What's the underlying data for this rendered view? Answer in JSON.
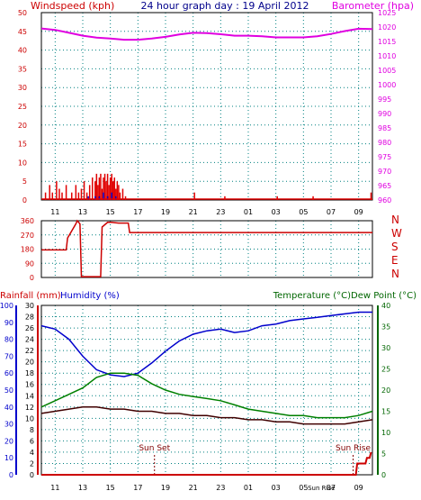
{
  "header": {
    "left_title": "Windspeed (kph)",
    "center_title": "24 hour graph day : 19 April 2012",
    "right_title": "Barometer (hpa)"
  },
  "colors": {
    "wind": "#e00000",
    "gust": "#0000cc",
    "barometer": "#e000e0",
    "direction": "#cc0000",
    "humidity": "#0000cc",
    "temperature": "#008000",
    "dewpoint": "#400000",
    "rain": "#cc0000",
    "grid": "#008080",
    "frame": "#000000",
    "left_axis_label": "#cc0000",
    "humidity_axis_label": "#0000cc",
    "temp_axis_label": "#006600"
  },
  "x_ticks": [
    "11",
    "13",
    "15",
    "17",
    "19",
    "21",
    "23",
    "01",
    "03",
    "05",
    "07",
    "09"
  ],
  "x_ticks_bottom": [
    "11",
    "13",
    "15",
    "17",
    "19",
    "21",
    "23",
    "01",
    "03",
    "05",
    "Sun Rise",
    "07",
    "09"
  ],
  "chart_data": [
    {
      "type": "line",
      "name": "wind-barometer",
      "y_left_ticks": [
        "0",
        "5",
        "10",
        "15",
        "20",
        "25",
        "30",
        "35",
        "40",
        "45",
        "50"
      ],
      "y_right_ticks": [
        "960",
        "965",
        "970",
        "975",
        "980",
        "985",
        "990",
        "995",
        "1000",
        "1005",
        "1010",
        "1015",
        "1020",
        "1025"
      ],
      "ylim_left": [
        0,
        50
      ],
      "ylim_right": [
        960,
        1025
      ],
      "barometer": {
        "x": [
          10,
          11,
          12,
          13,
          14,
          15,
          16,
          17,
          18,
          19,
          20,
          21,
          22,
          23,
          24,
          25,
          26,
          27,
          28,
          29,
          30,
          31,
          32,
          33,
          34
        ],
        "y": [
          1019.5,
          1019.0,
          1018.0,
          1017.0,
          1016.3,
          1016.0,
          1015.6,
          1015.6,
          1016.0,
          1016.6,
          1017.4,
          1018.0,
          1017.9,
          1017.5,
          1017.0,
          1017.0,
          1016.8,
          1016.4,
          1016.4,
          1016.4,
          1016.8,
          1017.6,
          1018.6,
          1019.4,
          1019.3
        ]
      },
      "wind_bars": [
        {
          "x": 10.3,
          "y": 2
        },
        {
          "x": 10.6,
          "y": 4
        },
        {
          "x": 10.8,
          "y": 2
        },
        {
          "x": 11.1,
          "y": 5
        },
        {
          "x": 11.3,
          "y": 3
        },
        {
          "x": 11.5,
          "y": 2
        },
        {
          "x": 11.8,
          "y": 4
        },
        {
          "x": 12.2,
          "y": 2
        },
        {
          "x": 12.5,
          "y": 4
        },
        {
          "x": 12.7,
          "y": 2
        },
        {
          "x": 12.9,
          "y": 3
        },
        {
          "x": 13.1,
          "y": 5
        },
        {
          "x": 13.3,
          "y": 2
        },
        {
          "x": 13.5,
          "y": 4
        },
        {
          "x": 13.7,
          "y": 6
        },
        {
          "x": 13.9,
          "y": 5
        },
        {
          "x": 14.0,
          "y": 7
        },
        {
          "x": 14.1,
          "y": 4
        },
        {
          "x": 14.2,
          "y": 6
        },
        {
          "x": 14.3,
          "y": 7
        },
        {
          "x": 14.4,
          "y": 3
        },
        {
          "x": 14.5,
          "y": 6
        },
        {
          "x": 14.6,
          "y": 7
        },
        {
          "x": 14.7,
          "y": 5
        },
        {
          "x": 14.8,
          "y": 7
        },
        {
          "x": 14.9,
          "y": 4
        },
        {
          "x": 15.0,
          "y": 6
        },
        {
          "x": 15.1,
          "y": 7
        },
        {
          "x": 15.2,
          "y": 5
        },
        {
          "x": 15.3,
          "y": 6
        },
        {
          "x": 15.4,
          "y": 3
        },
        {
          "x": 15.5,
          "y": 5
        },
        {
          "x": 15.6,
          "y": 4
        },
        {
          "x": 15.7,
          "y": 2
        },
        {
          "x": 15.9,
          "y": 3
        },
        {
          "x": 16.1,
          "y": 1
        },
        {
          "x": 21.1,
          "y": 2
        },
        {
          "x": 23.3,
          "y": 1
        },
        {
          "x": 27.1,
          "y": 1
        },
        {
          "x": 29.7,
          "y": 1
        },
        {
          "x": 33.9,
          "y": 2
        }
      ],
      "gust_bars": [
        {
          "x": 13.4,
          "y": 1
        },
        {
          "x": 13.9,
          "y": 1
        },
        {
          "x": 14.2,
          "y": 1
        },
        {
          "x": 14.5,
          "y": 2
        },
        {
          "x": 14.8,
          "y": 1
        },
        {
          "x": 15.1,
          "y": 2
        },
        {
          "x": 15.4,
          "y": 1
        }
      ]
    },
    {
      "type": "line",
      "name": "wind-direction",
      "y_ticks": [
        "0",
        "90",
        "180",
        "270",
        "360"
      ],
      "compass": [
        "N",
        "W",
        "S",
        "E",
        "N"
      ],
      "ylim": [
        0,
        360
      ],
      "direction": {
        "x": [
          10,
          11.8,
          11.9,
          12.5,
          12.6,
          12.8,
          12.9,
          14.3,
          14.4,
          14.8,
          15.1,
          15.6,
          16.3,
          16.4,
          34
        ],
        "y": [
          175,
          175,
          250,
          340,
          360,
          340,
          5,
          5,
          320,
          350,
          350,
          345,
          345,
          285,
          285
        ]
      }
    },
    {
      "type": "line",
      "name": "temp-humidity-rain",
      "left_label_rain": "Rainfall (mm)",
      "left_label_hum": "Humidity (%)",
      "right_label": "Temperature (°C)Dew Point (°C)",
      "y_rain_ticks": [
        "0",
        "2",
        "4",
        "6",
        "8",
        "10",
        "12",
        "14",
        "16",
        "18",
        "20",
        "22",
        "24",
        "26",
        "28",
        "30"
      ],
      "y_hum_ticks": [
        "0",
        "10",
        "20",
        "30",
        "40",
        "50",
        "60",
        "70",
        "80",
        "90",
        "100"
      ],
      "y_temp_ticks": [
        "0",
        "5",
        "10",
        "15",
        "20",
        "25",
        "30",
        "35",
        "40"
      ],
      "ylim_hum": [
        0,
        100
      ],
      "ylim_temp": [
        0,
        40
      ],
      "annotations": {
        "sunset": "Sun Set",
        "sunrise": "Sun Rise"
      },
      "humidity": {
        "x": [
          10,
          11,
          12,
          13,
          14,
          15,
          16,
          17,
          18,
          19,
          20,
          21,
          22,
          23,
          24,
          25,
          26,
          27,
          28,
          29,
          30,
          31,
          32,
          33,
          34
        ],
        "y": [
          88,
          86,
          80,
          70,
          62,
          59,
          58,
          60,
          66,
          73,
          79,
          83,
          85,
          86,
          84,
          85,
          88,
          89,
          91,
          92,
          93,
          94,
          95,
          96,
          96
        ]
      },
      "temperature": {
        "x": [
          10,
          11,
          12,
          13,
          14,
          15,
          16,
          17,
          18,
          19,
          20,
          21,
          22,
          23,
          24,
          25,
          26,
          27,
          28,
          29,
          30,
          31,
          32,
          33,
          34
        ],
        "y": [
          16,
          17.5,
          19,
          20.5,
          23,
          24,
          24,
          23.5,
          21.5,
          20,
          19,
          18.5,
          18,
          17.5,
          16.5,
          15.5,
          15,
          14.5,
          14,
          14,
          13.5,
          13.5,
          13.5,
          14,
          15
        ]
      },
      "dewpoint": {
        "x": [
          10,
          11,
          12,
          13,
          14,
          15,
          16,
          17,
          18,
          19,
          20,
          21,
          22,
          23,
          24,
          25,
          26,
          27,
          28,
          29,
          30,
          31,
          32,
          33,
          34
        ],
        "y": [
          14.5,
          15,
          15.5,
          16,
          16,
          15.5,
          15.5,
          15,
          15,
          14.5,
          14.5,
          14,
          14,
          13.5,
          13.5,
          13,
          13,
          12.5,
          12.5,
          12,
          12,
          12,
          12,
          12.5,
          13
        ]
      },
      "rain": {
        "x": [
          10,
          32.8,
          32.9,
          33.5,
          33.6,
          33.8,
          33.9
        ],
        "y": [
          0,
          0,
          2,
          2,
          3,
          3,
          4
        ]
      }
    }
  ]
}
